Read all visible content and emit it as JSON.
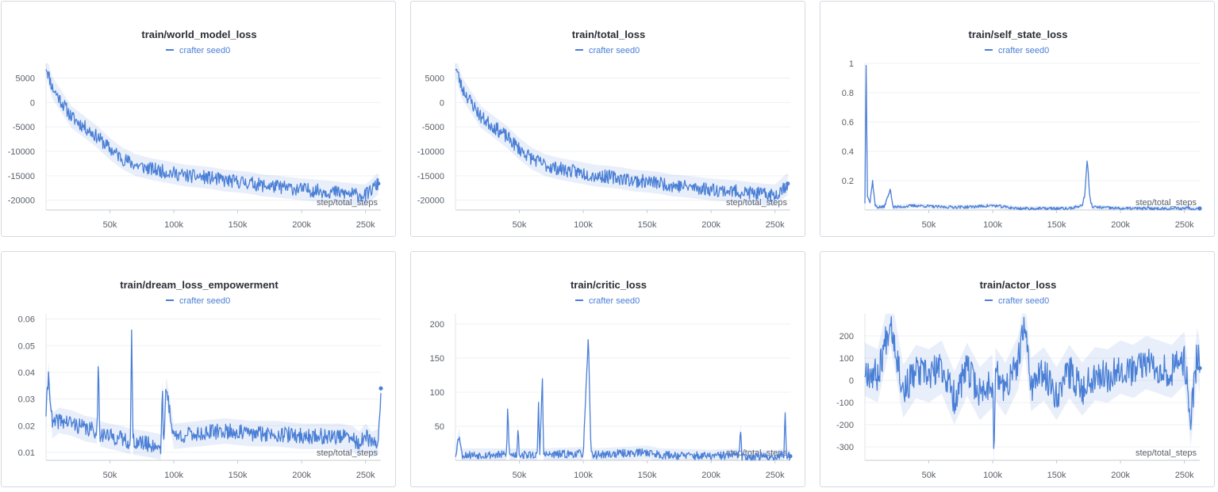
{
  "legend_label": "crafter  seed0",
  "series_color": "#4a7fd6",
  "chart_data": [
    {
      "type": "line",
      "title": "train/world_model_loss",
      "xlabel": "step/total_steps",
      "ylabel": "",
      "series": [
        {
          "name": "crafter  seed0"
        }
      ],
      "xlim": [
        0,
        262000
      ],
      "ylim": [
        -22000,
        8000
      ],
      "xticks": [
        50000,
        100000,
        150000,
        200000,
        250000
      ],
      "xtick_labels": [
        "50k",
        "100k",
        "150k",
        "200k",
        "250k"
      ],
      "yticks": [
        5000,
        0,
        -5000,
        -10000,
        -15000,
        -20000
      ],
      "ytick_labels": [
        "5000",
        "0",
        "-5000",
        "-10000",
        "-15000",
        "-20000"
      ],
      "x": [
        0,
        5000,
        10000,
        20000,
        30000,
        40000,
        50000,
        60000,
        70000,
        80000,
        90000,
        100000,
        110000,
        120000,
        130000,
        140000,
        150000,
        160000,
        170000,
        180000,
        190000,
        200000,
        210000,
        220000,
        230000,
        240000,
        250000,
        260000
      ],
      "y": [
        7500,
        3000,
        1000,
        -3000,
        -5000,
        -7000,
        -9500,
        -11500,
        -12800,
        -13500,
        -14000,
        -14500,
        -15000,
        -15200,
        -15500,
        -16000,
        -16200,
        -16500,
        -17000,
        -17200,
        -17500,
        -17800,
        -18000,
        -18200,
        -18500,
        -18800,
        -19000,
        -16600
      ],
      "noise": 1400,
      "seed": 11
    },
    {
      "type": "line",
      "title": "train/total_loss",
      "xlabel": "step/total_steps",
      "ylabel": "",
      "series": [
        {
          "name": "crafter  seed0"
        }
      ],
      "xlim": [
        0,
        262000
      ],
      "ylim": [
        -22000,
        8000
      ],
      "xticks": [
        50000,
        100000,
        150000,
        200000,
        250000
      ],
      "xtick_labels": [
        "50k",
        "100k",
        "150k",
        "200k",
        "250k"
      ],
      "yticks": [
        5000,
        0,
        -5000,
        -10000,
        -15000,
        -20000
      ],
      "ytick_labels": [
        "5000",
        "0",
        "-5000",
        "-10000",
        "-15000",
        "-20000"
      ],
      "x": [
        0,
        5000,
        10000,
        20000,
        30000,
        40000,
        50000,
        60000,
        70000,
        80000,
        90000,
        100000,
        110000,
        120000,
        130000,
        140000,
        150000,
        160000,
        170000,
        180000,
        190000,
        200000,
        210000,
        220000,
        230000,
        240000,
        250000,
        260000
      ],
      "y": [
        7500,
        3000,
        1000,
        -3000,
        -5000,
        -7000,
        -9500,
        -11500,
        -12800,
        -13500,
        -14000,
        -14500,
        -15000,
        -15200,
        -15500,
        -16000,
        -16200,
        -16500,
        -17000,
        -17200,
        -17500,
        -17800,
        -18000,
        -18200,
        -18500,
        -18800,
        -19000,
        -16600
      ],
      "noise": 1400,
      "seed": 23
    },
    {
      "type": "line",
      "title": "train/self_state_loss",
      "xlabel": "step/total_steps",
      "ylabel": "",
      "series": [
        {
          "name": "crafter  seed0"
        }
      ],
      "xlim": [
        0,
        262000
      ],
      "ylim": [
        0,
        1
      ],
      "xticks": [
        50000,
        100000,
        150000,
        200000,
        250000
      ],
      "xtick_labels": [
        "50k",
        "100k",
        "150k",
        "200k",
        "250k"
      ],
      "yticks": [
        1,
        0.8,
        0.6,
        0.4,
        0.2
      ],
      "ytick_labels": [
        "1",
        "0.8",
        "0.6",
        "0.4",
        "0.2"
      ],
      "x": [
        0,
        1000,
        2000,
        4000,
        6000,
        8000,
        10000,
        15000,
        20000,
        22000,
        25000,
        40000,
        60000,
        80000,
        100000,
        120000,
        140000,
        160000,
        170000,
        172000,
        174000,
        176000,
        178000,
        200000,
        220000,
        240000,
        250000,
        252000,
        254000,
        256000,
        262000
      ],
      "y": [
        0.05,
        1.0,
        0.1,
        0.05,
        0.2,
        0.03,
        0.02,
        0.02,
        0.14,
        0.02,
        0.02,
        0.03,
        0.02,
        0.02,
        0.03,
        0.01,
        0.01,
        0.01,
        0.03,
        0.1,
        0.35,
        0.08,
        0.02,
        0.01,
        0.01,
        0.01,
        0.01,
        0.02,
        0.01,
        0.01,
        0.01
      ],
      "noise": 0.01,
      "seed": 37
    },
    {
      "type": "line",
      "title": "train/dream_loss_empowerment",
      "xlabel": "step/total_steps",
      "ylabel": "",
      "series": [
        {
          "name": "crafter  seed0"
        }
      ],
      "xlim": [
        0,
        262000
      ],
      "ylim": [
        0.007,
        0.062
      ],
      "xticks": [
        50000,
        100000,
        150000,
        200000,
        250000
      ],
      "xtick_labels": [
        "50k",
        "100k",
        "150k",
        "200k",
        "250k"
      ],
      "yticks": [
        0.06,
        0.05,
        0.04,
        0.03,
        0.02,
        0.01
      ],
      "ytick_labels": [
        "0.06",
        "0.05",
        "0.04",
        "0.03",
        "0.02",
        "0.01"
      ],
      "x": [
        0,
        2000,
        5000,
        10000,
        20000,
        30000,
        40000,
        41000,
        42000,
        50000,
        60000,
        66000,
        67000,
        68000,
        80000,
        90000,
        91000,
        92000,
        94000,
        100000,
        120000,
        140000,
        160000,
        180000,
        200000,
        220000,
        230000,
        240000,
        245000,
        250000,
        255000,
        260000,
        262000
      ],
      "y": [
        0.025,
        0.039,
        0.02,
        0.022,
        0.021,
        0.019,
        0.018,
        0.046,
        0.017,
        0.016,
        0.015,
        0.014,
        0.056,
        0.014,
        0.013,
        0.012,
        0.037,
        0.012,
        0.034,
        0.016,
        0.017,
        0.018,
        0.017,
        0.017,
        0.016,
        0.016,
        0.016,
        0.015,
        0.013,
        0.016,
        0.013,
        0.014,
        0.034
      ],
      "noise": 0.003,
      "seed": 41
    },
    {
      "type": "line",
      "title": "train/critic_loss",
      "xlabel": "step/total_steps",
      "ylabel": "",
      "series": [
        {
          "name": "crafter  seed0"
        }
      ],
      "xlim": [
        0,
        262000
      ],
      "ylim": [
        0,
        215
      ],
      "xticks": [
        50000,
        100000,
        150000,
        200000,
        250000
      ],
      "xtick_labels": [
        "50k",
        "100k",
        "150k",
        "200k",
        "250k"
      ],
      "yticks": [
        200,
        150,
        100,
        50
      ],
      "ytick_labels": [
        "200",
        "150",
        "100",
        "50"
      ],
      "x": [
        0,
        3000,
        5000,
        20000,
        40000,
        41000,
        42000,
        48000,
        49000,
        50000,
        64000,
        65000,
        66000,
        68000,
        69000,
        70000,
        100000,
        104000,
        105000,
        106000,
        110000,
        150000,
        160000,
        200000,
        222000,
        223000,
        224000,
        250000,
        257000,
        258000,
        259000,
        262000
      ],
      "y": [
        8,
        38,
        8,
        8,
        8,
        88,
        8,
        8,
        52,
        8,
        8,
        82,
        8,
        120,
        8,
        8,
        10,
        180,
        100,
        10,
        8,
        12,
        8,
        6,
        8,
        52,
        6,
        5,
        8,
        74,
        6,
        6
      ],
      "noise": 6,
      "seed": 53
    },
    {
      "type": "line",
      "title": "train/actor_loss",
      "xlabel": "step/total_steps",
      "ylabel": "",
      "series": [
        {
          "name": "crafter  seed0"
        }
      ],
      "xlim": [
        0,
        262000
      ],
      "ylim": [
        -360,
        300
      ],
      "xticks": [
        50000,
        100000,
        150000,
        200000,
        250000
      ],
      "xtick_labels": [
        "50k",
        "100k",
        "150k",
        "200k",
        "250k"
      ],
      "yticks": [
        200,
        100,
        0,
        -100,
        -200,
        -300
      ],
      "ytick_labels": [
        "200",
        "100",
        "0",
        "-100",
        "-200",
        "-300"
      ],
      "x": [
        0,
        10000,
        20000,
        30000,
        40000,
        50000,
        60000,
        70000,
        80000,
        90000,
        100000,
        101000,
        102000,
        110000,
        120000,
        125000,
        130000,
        140000,
        150000,
        160000,
        170000,
        180000,
        190000,
        200000,
        210000,
        220000,
        230000,
        240000,
        250000,
        255000,
        260000,
        262000
      ],
      "y": [
        50,
        20,
        280,
        -50,
        40,
        20,
        60,
        -80,
        50,
        -60,
        0,
        -340,
        30,
        -40,
        80,
        250,
        -20,
        30,
        -60,
        40,
        -40,
        30,
        20,
        60,
        40,
        80,
        60,
        40,
        100,
        -180,
        120,
        55
      ],
      "noise": 75,
      "seed": 67
    }
  ]
}
